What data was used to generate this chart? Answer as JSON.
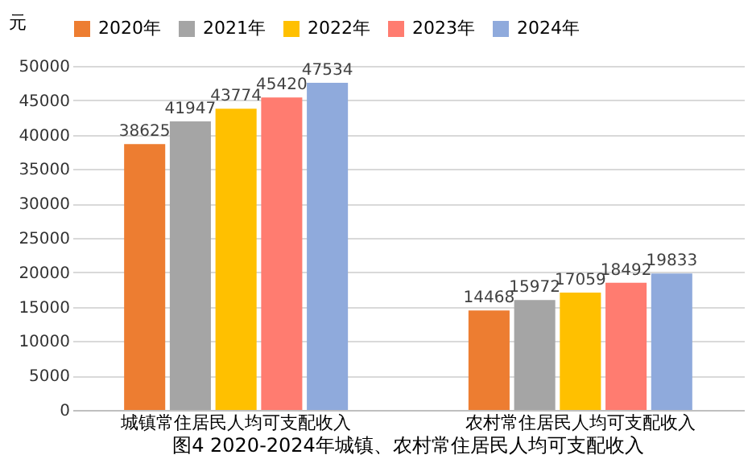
{
  "chart_data": {
    "type": "bar",
    "title": "图4 2020-2024年城镇、农村常住居民人均可支配收入",
    "ylabel": "元",
    "categories": [
      "城镇常住居民人均可支配收入",
      "农村常住居民人均可支配收入"
    ],
    "series": [
      {
        "name": "2020年",
        "color": "#ed7d31",
        "values": [
          38625,
          14468
        ]
      },
      {
        "name": "2021年",
        "color": "#a5a5a5",
        "values": [
          41947,
          15972
        ]
      },
      {
        "name": "2022年",
        "color": "#ffc000",
        "values": [
          43774,
          17059
        ]
      },
      {
        "name": "2023年",
        "color": "#ff7c70",
        "values": [
          45420,
          18492
        ]
      },
      {
        "name": "2024年",
        "color": "#8faadc",
        "values": [
          47534,
          19833
        ]
      }
    ],
    "ylim": [
      0,
      50000
    ],
    "yticks": [
      0,
      5000,
      10000,
      15000,
      20000,
      25000,
      30000,
      35000,
      40000,
      45000,
      50000
    ],
    "grid": "y",
    "legend": "top",
    "data_labels": true
  }
}
